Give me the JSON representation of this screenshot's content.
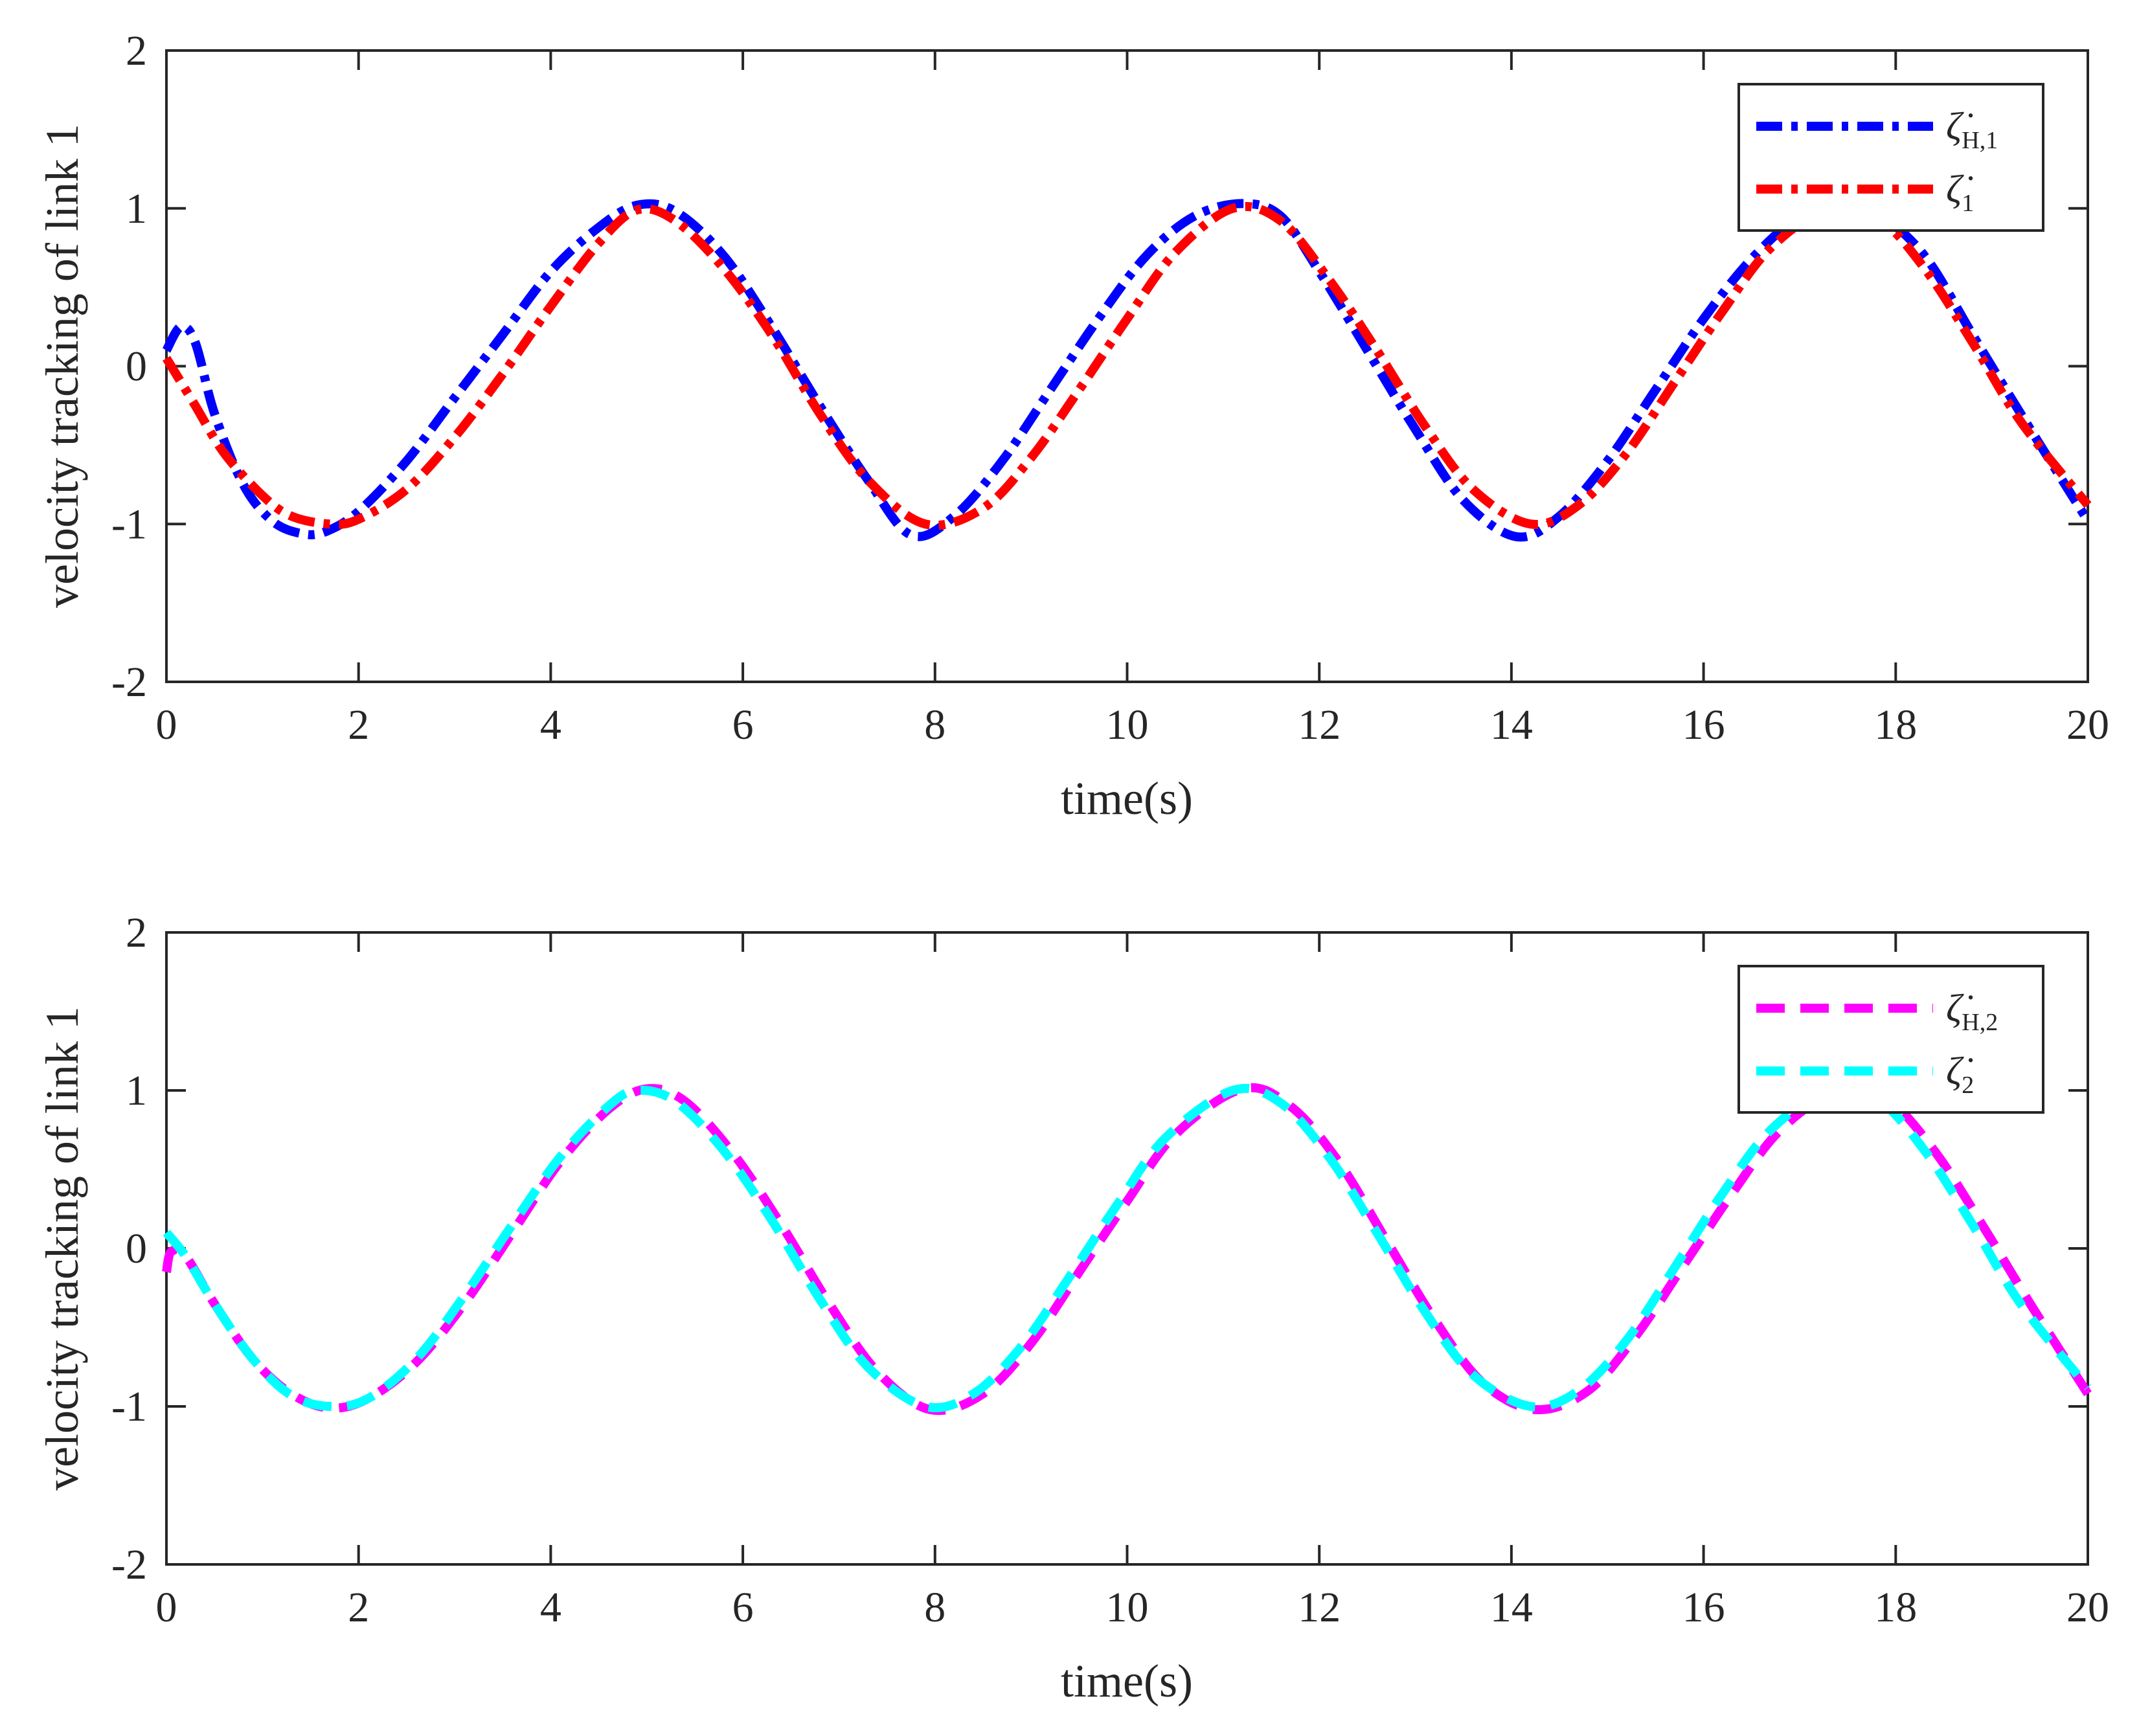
{
  "chart_data": [
    {
      "type": "line",
      "xlabel": "time(s)",
      "ylabel": "velocity tracking of link 1",
      "xlim": [
        0,
        20
      ],
      "ylim": [
        -2,
        2
      ],
      "xticks": [
        "0",
        "2",
        "4",
        "6",
        "8",
        "10",
        "12",
        "14",
        "16",
        "18",
        "20"
      ],
      "yticks": [
        "-2",
        "-1",
        "0",
        "1",
        "2"
      ],
      "legend_position": "top-right",
      "grid": false,
      "series": [
        {
          "name": "ζ̇H,1",
          "legend_symbol": "ζ̇",
          "legend_subscript": "H,1",
          "color": "#0000FF",
          "line_style": "dash-dot",
          "x": [
            0,
            0.15,
            0.3,
            0.5,
            0.8,
            1.1,
            1.4,
            1.65,
            2,
            2.5,
            3,
            3.5,
            4,
            4.5,
            4.9,
            5.3,
            5.8,
            6.3,
            6.8,
            7.3,
            7.75,
            8.2,
            8.7,
            9.2,
            9.7,
            10.2,
            10.7,
            11.2,
            11.6,
            12.0,
            12.5,
            13.0,
            13.5,
            14.05,
            14.5,
            15.0,
            15.5,
            16.0,
            16.5,
            17.0,
            17.4,
            17.8,
            18.3,
            18.8,
            19.3,
            20.0
          ],
          "y": [
            0.1,
            0.25,
            0.15,
            -0.3,
            -0.75,
            -0.98,
            -1.06,
            -1.05,
            -0.92,
            -0.6,
            -0.2,
            0.2,
            0.6,
            0.88,
            1.02,
            0.98,
            0.7,
            0.25,
            -0.25,
            -0.72,
            -1.07,
            -0.95,
            -0.6,
            -0.15,
            0.3,
            0.7,
            0.95,
            1.03,
            0.95,
            0.6,
            0.1,
            -0.4,
            -0.85,
            -1.08,
            -0.95,
            -0.6,
            -0.15,
            0.3,
            0.68,
            0.95,
            1.02,
            0.97,
            0.7,
            0.2,
            -0.3,
            -0.98
          ]
        },
        {
          "name": "ζ̇1",
          "legend_symbol": "ζ̇",
          "legend_subscript": "1",
          "color": "#FF0000",
          "line_style": "dash-dot",
          "x": [
            0,
            0.3,
            0.6,
            1.0,
            1.3,
            1.7,
            2.0,
            2.5,
            3.0,
            3.5,
            4.0,
            4.5,
            4.9,
            5.3,
            5.8,
            6.3,
            6.8,
            7.3,
            7.9,
            8.5,
            9.0,
            9.5,
            10.0,
            10.5,
            11.1,
            11.6,
            12.1,
            12.6,
            13.1,
            13.6,
            14.2,
            14.7,
            15.2,
            15.7,
            16.2,
            16.7,
            17.3,
            17.8,
            18.3,
            18.8,
            19.3,
            20.0
          ],
          "y": [
            0.05,
            -0.25,
            -0.55,
            -0.82,
            -0.95,
            -1.0,
            -0.97,
            -0.78,
            -0.45,
            -0.05,
            0.38,
            0.78,
            0.99,
            0.92,
            0.62,
            0.2,
            -0.3,
            -0.72,
            -1.0,
            -0.9,
            -0.58,
            -0.15,
            0.3,
            0.72,
            1.0,
            0.92,
            0.55,
            0.1,
            -0.38,
            -0.78,
            -1.0,
            -0.88,
            -0.55,
            -0.1,
            0.35,
            0.75,
            1.0,
            0.95,
            0.62,
            0.15,
            -0.35,
            -0.88
          ]
        }
      ]
    },
    {
      "type": "line",
      "xlabel": "time(s)",
      "ylabel": "velocity tracking of link 1",
      "xlim": [
        0,
        20
      ],
      "ylim": [
        -2,
        2
      ],
      "xticks": [
        "0",
        "2",
        "4",
        "6",
        "8",
        "10",
        "12",
        "14",
        "16",
        "18",
        "20"
      ],
      "yticks": [
        "-2",
        "-1",
        "0",
        "1",
        "2"
      ],
      "legend_position": "top-right",
      "grid": false,
      "series": [
        {
          "name": "ζ̇H,2",
          "legend_symbol": "ζ̇",
          "legend_subscript": "H,2",
          "color": "#FF00FF",
          "line_style": "dashed",
          "x": [
            0,
            0.05,
            0.2,
            0.5,
            0.9,
            1.3,
            1.7,
            2.1,
            2.6,
            3.1,
            3.6,
            4.1,
            4.6,
            5.0,
            5.4,
            5.9,
            6.4,
            6.9,
            7.4,
            7.95,
            8.5,
            9.0,
            9.5,
            10.0,
            10.5,
            11.2,
            11.7,
            12.2,
            12.7,
            13.2,
            13.7,
            14.25,
            14.8,
            15.3,
            15.8,
            16.3,
            16.8,
            17.4,
            17.9,
            18.4,
            18.9,
            19.4,
            20.0
          ],
          "y": [
            -0.15,
            -0.02,
            -0.05,
            -0.35,
            -0.7,
            -0.92,
            -1.01,
            -0.95,
            -0.72,
            -0.35,
            0.1,
            0.55,
            0.88,
            1.01,
            0.93,
            0.6,
            0.15,
            -0.35,
            -0.78,
            -1.02,
            -0.92,
            -0.6,
            -0.15,
            0.3,
            0.72,
            1.01,
            0.9,
            0.55,
            0.05,
            -0.45,
            -0.85,
            -1.02,
            -0.9,
            -0.55,
            -0.1,
            0.35,
            0.75,
            1.0,
            0.95,
            0.62,
            0.15,
            -0.35,
            -0.92
          ]
        },
        {
          "name": "ζ̇2",
          "legend_symbol": "ζ̇",
          "legend_subscript": "2",
          "color": "#00FFFF",
          "line_style": "dashed",
          "x": [
            0,
            0.2,
            0.5,
            0.9,
            1.3,
            1.7,
            2.1,
            2.6,
            3.1,
            3.6,
            4.1,
            4.6,
            4.9,
            5.3,
            5.8,
            6.3,
            6.8,
            7.3,
            7.9,
            8.4,
            8.9,
            9.4,
            9.9,
            10.4,
            11.1,
            11.6,
            12.1,
            12.6,
            13.1,
            13.6,
            14.2,
            14.7,
            15.2,
            15.7,
            16.2,
            16.7,
            17.3,
            17.8,
            18.3,
            18.8,
            19.3,
            20.0
          ],
          "y": [
            0.1,
            -0.05,
            -0.35,
            -0.7,
            -0.93,
            -1.0,
            -0.95,
            -0.7,
            -0.3,
            0.15,
            0.58,
            0.9,
            1.0,
            0.93,
            0.62,
            0.18,
            -0.32,
            -0.75,
            -1.0,
            -0.92,
            -0.62,
            -0.18,
            0.28,
            0.7,
            1.0,
            0.92,
            0.58,
            0.1,
            -0.4,
            -0.8,
            -1.0,
            -0.9,
            -0.58,
            -0.12,
            0.35,
            0.75,
            1.0,
            0.95,
            0.62,
            0.15,
            -0.35,
            -0.88
          ]
        }
      ]
    }
  ]
}
